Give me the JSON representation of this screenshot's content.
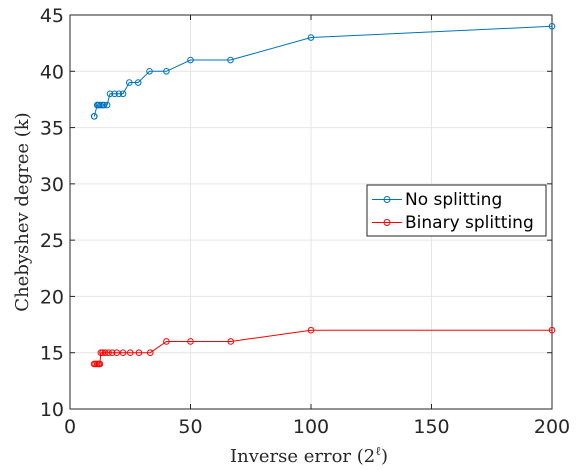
{
  "chart_data": {
    "type": "line",
    "xlabel_main": "Inverse error (2",
    "xlabel_sup": "ℓ",
    "xlabel_close": ")",
    "ylabel": "Chebyshev degree (k)",
    "xlim": [
      0,
      200
    ],
    "ylim": [
      10,
      45
    ],
    "xticks": [
      0,
      50,
      100,
      150,
      200
    ],
    "yticks": [
      10,
      15,
      20,
      25,
      30,
      35,
      40,
      45
    ],
    "grid": true,
    "legend_position": "center-right",
    "series": [
      {
        "name": "No splitting",
        "color": "#0072BD",
        "x": [
          10.0,
          10.1,
          11.3,
          11.5,
          12.0,
          12.7,
          13.5,
          14.1,
          15.4,
          16.6,
          18.5,
          20.3,
          22.0,
          24.6,
          28.3,
          33.0,
          40.0,
          50.0,
          66.6,
          100.0,
          200.0
        ],
        "y": [
          36,
          36,
          37,
          37,
          37,
          37,
          37,
          37,
          37,
          38,
          38,
          38,
          38,
          39,
          39,
          40,
          40,
          41,
          41,
          43,
          44
        ]
      },
      {
        "name": "Binary splitting",
        "color": "#FF0000",
        "x": [
          10.0,
          10.6,
          11.3,
          11.9,
          12.4,
          12.8,
          13.5,
          14.6,
          16.0,
          17.5,
          19.4,
          22.0,
          25.0,
          28.6,
          33.3,
          40.0,
          50.0,
          66.7,
          100.0,
          200.0
        ],
        "y": [
          14,
          14,
          14,
          14,
          14,
          15,
          15,
          15,
          15,
          15,
          15,
          15,
          15,
          15,
          15,
          16,
          16,
          16,
          17,
          17
        ]
      }
    ]
  }
}
